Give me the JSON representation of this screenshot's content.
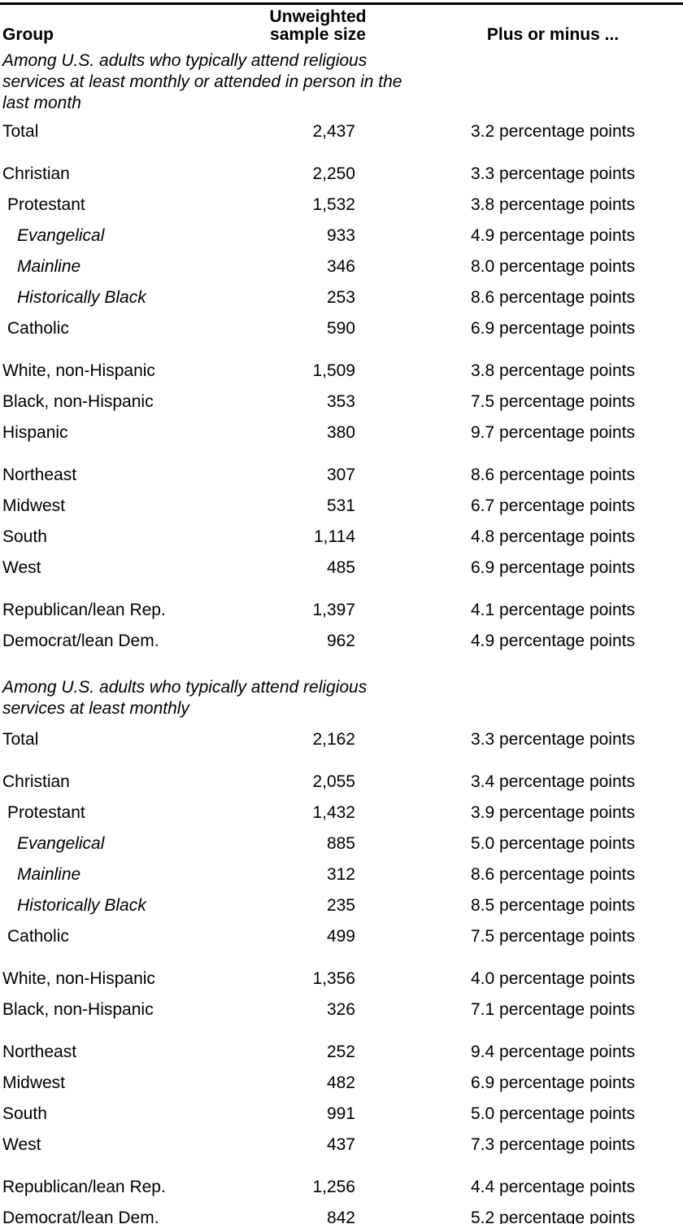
{
  "colors": {
    "background": "#ffffff",
    "text": "#000000",
    "rule": "#000000"
  },
  "table": {
    "columns": {
      "group": "Group",
      "sample_size": "Unweighted sample size",
      "moe": "Plus or minus ..."
    },
    "sections": [
      {
        "note": "Among U.S. adults who typically attend religious services at least monthly or attended in person in the last month",
        "rows": [
          {
            "group": "Total",
            "n": "2,437",
            "moe": "3.2 percentage points"
          },
          {
            "group": "Christian",
            "n": "2,250",
            "moe": "3.3 percentage points",
            "gap": true
          },
          {
            "group": "Protestant",
            "n": "1,532",
            "moe": "3.8 percentage points",
            "indent": 1
          },
          {
            "group": "Evangelical",
            "n": "933",
            "moe": "4.9 percentage points",
            "indent": 2,
            "italic": true
          },
          {
            "group": "Mainline",
            "n": "346",
            "moe": "8.0 percentage points",
            "indent": 2,
            "italic": true
          },
          {
            "group": "Historically Black",
            "n": "253",
            "moe": "8.6 percentage points",
            "indent": 2,
            "italic": true
          },
          {
            "group": "Catholic",
            "n": "590",
            "moe": "6.9 percentage points",
            "indent": 1
          },
          {
            "group": "White, non-Hispanic",
            "n": "1,509",
            "moe": "3.8 percentage points",
            "gap": true
          },
          {
            "group": "Black, non-Hispanic",
            "n": "353",
            "moe": "7.5 percentage points"
          },
          {
            "group": "Hispanic",
            "n": "380",
            "moe": "9.7 percentage points"
          },
          {
            "group": "Northeast",
            "n": "307",
            "moe": "8.6 percentage points",
            "gap": true
          },
          {
            "group": "Midwest",
            "n": "531",
            "moe": "6.7 percentage points"
          },
          {
            "group": "South",
            "n": "1,114",
            "moe": "4.8 percentage points"
          },
          {
            "group": "West",
            "n": "485",
            "moe": "6.9 percentage points"
          },
          {
            "group": "Republican/lean Rep.",
            "n": "1,397",
            "moe": "4.1 percentage points",
            "gap": true
          },
          {
            "group": "Democrat/lean Dem.",
            "n": "962",
            "moe": "4.9 percentage points"
          }
        ]
      },
      {
        "note": "Among U.S. adults who typically attend religious services at least monthly",
        "rows": [
          {
            "group": "Total",
            "n": "2,162",
            "moe": "3.3 percentage points"
          },
          {
            "group": "Christian",
            "n": "2,055",
            "moe": "3.4 percentage points",
            "gap": true
          },
          {
            "group": "Protestant",
            "n": "1,432",
            "moe": "3.9 percentage points",
            "indent": 1
          },
          {
            "group": "Evangelical",
            "n": "885",
            "moe": "5.0 percentage points",
            "indent": 2,
            "italic": true
          },
          {
            "group": "Mainline",
            "n": "312",
            "moe": "8.6 percentage points",
            "indent": 2,
            "italic": true
          },
          {
            "group": "Historically Black",
            "n": "235",
            "moe": "8.5 percentage points",
            "indent": 2,
            "italic": true
          },
          {
            "group": "Catholic",
            "n": "499",
            "moe": "7.5 percentage points",
            "indent": 1
          },
          {
            "group": "White, non-Hispanic",
            "n": "1,356",
            "moe": "4.0 percentage points",
            "gap": true
          },
          {
            "group": "Black, non-Hispanic",
            "n": "326",
            "moe": "7.1 percentage points"
          },
          {
            "group": "Northeast",
            "n": "252",
            "moe": "9.4 percentage points",
            "gap": true
          },
          {
            "group": "Midwest",
            "n": "482",
            "moe": "6.9 percentage points"
          },
          {
            "group": "South",
            "n": "991",
            "moe": "5.0 percentage points"
          },
          {
            "group": "West",
            "n": "437",
            "moe": "7.3 percentage points"
          },
          {
            "group": "Republican/lean Rep.",
            "n": "1,256",
            "moe": "4.4 percentage points",
            "gap": true
          },
          {
            "group": "Democrat/lean Dem.",
            "n": "842",
            "moe": "5.2 percentage points"
          }
        ]
      }
    ]
  }
}
